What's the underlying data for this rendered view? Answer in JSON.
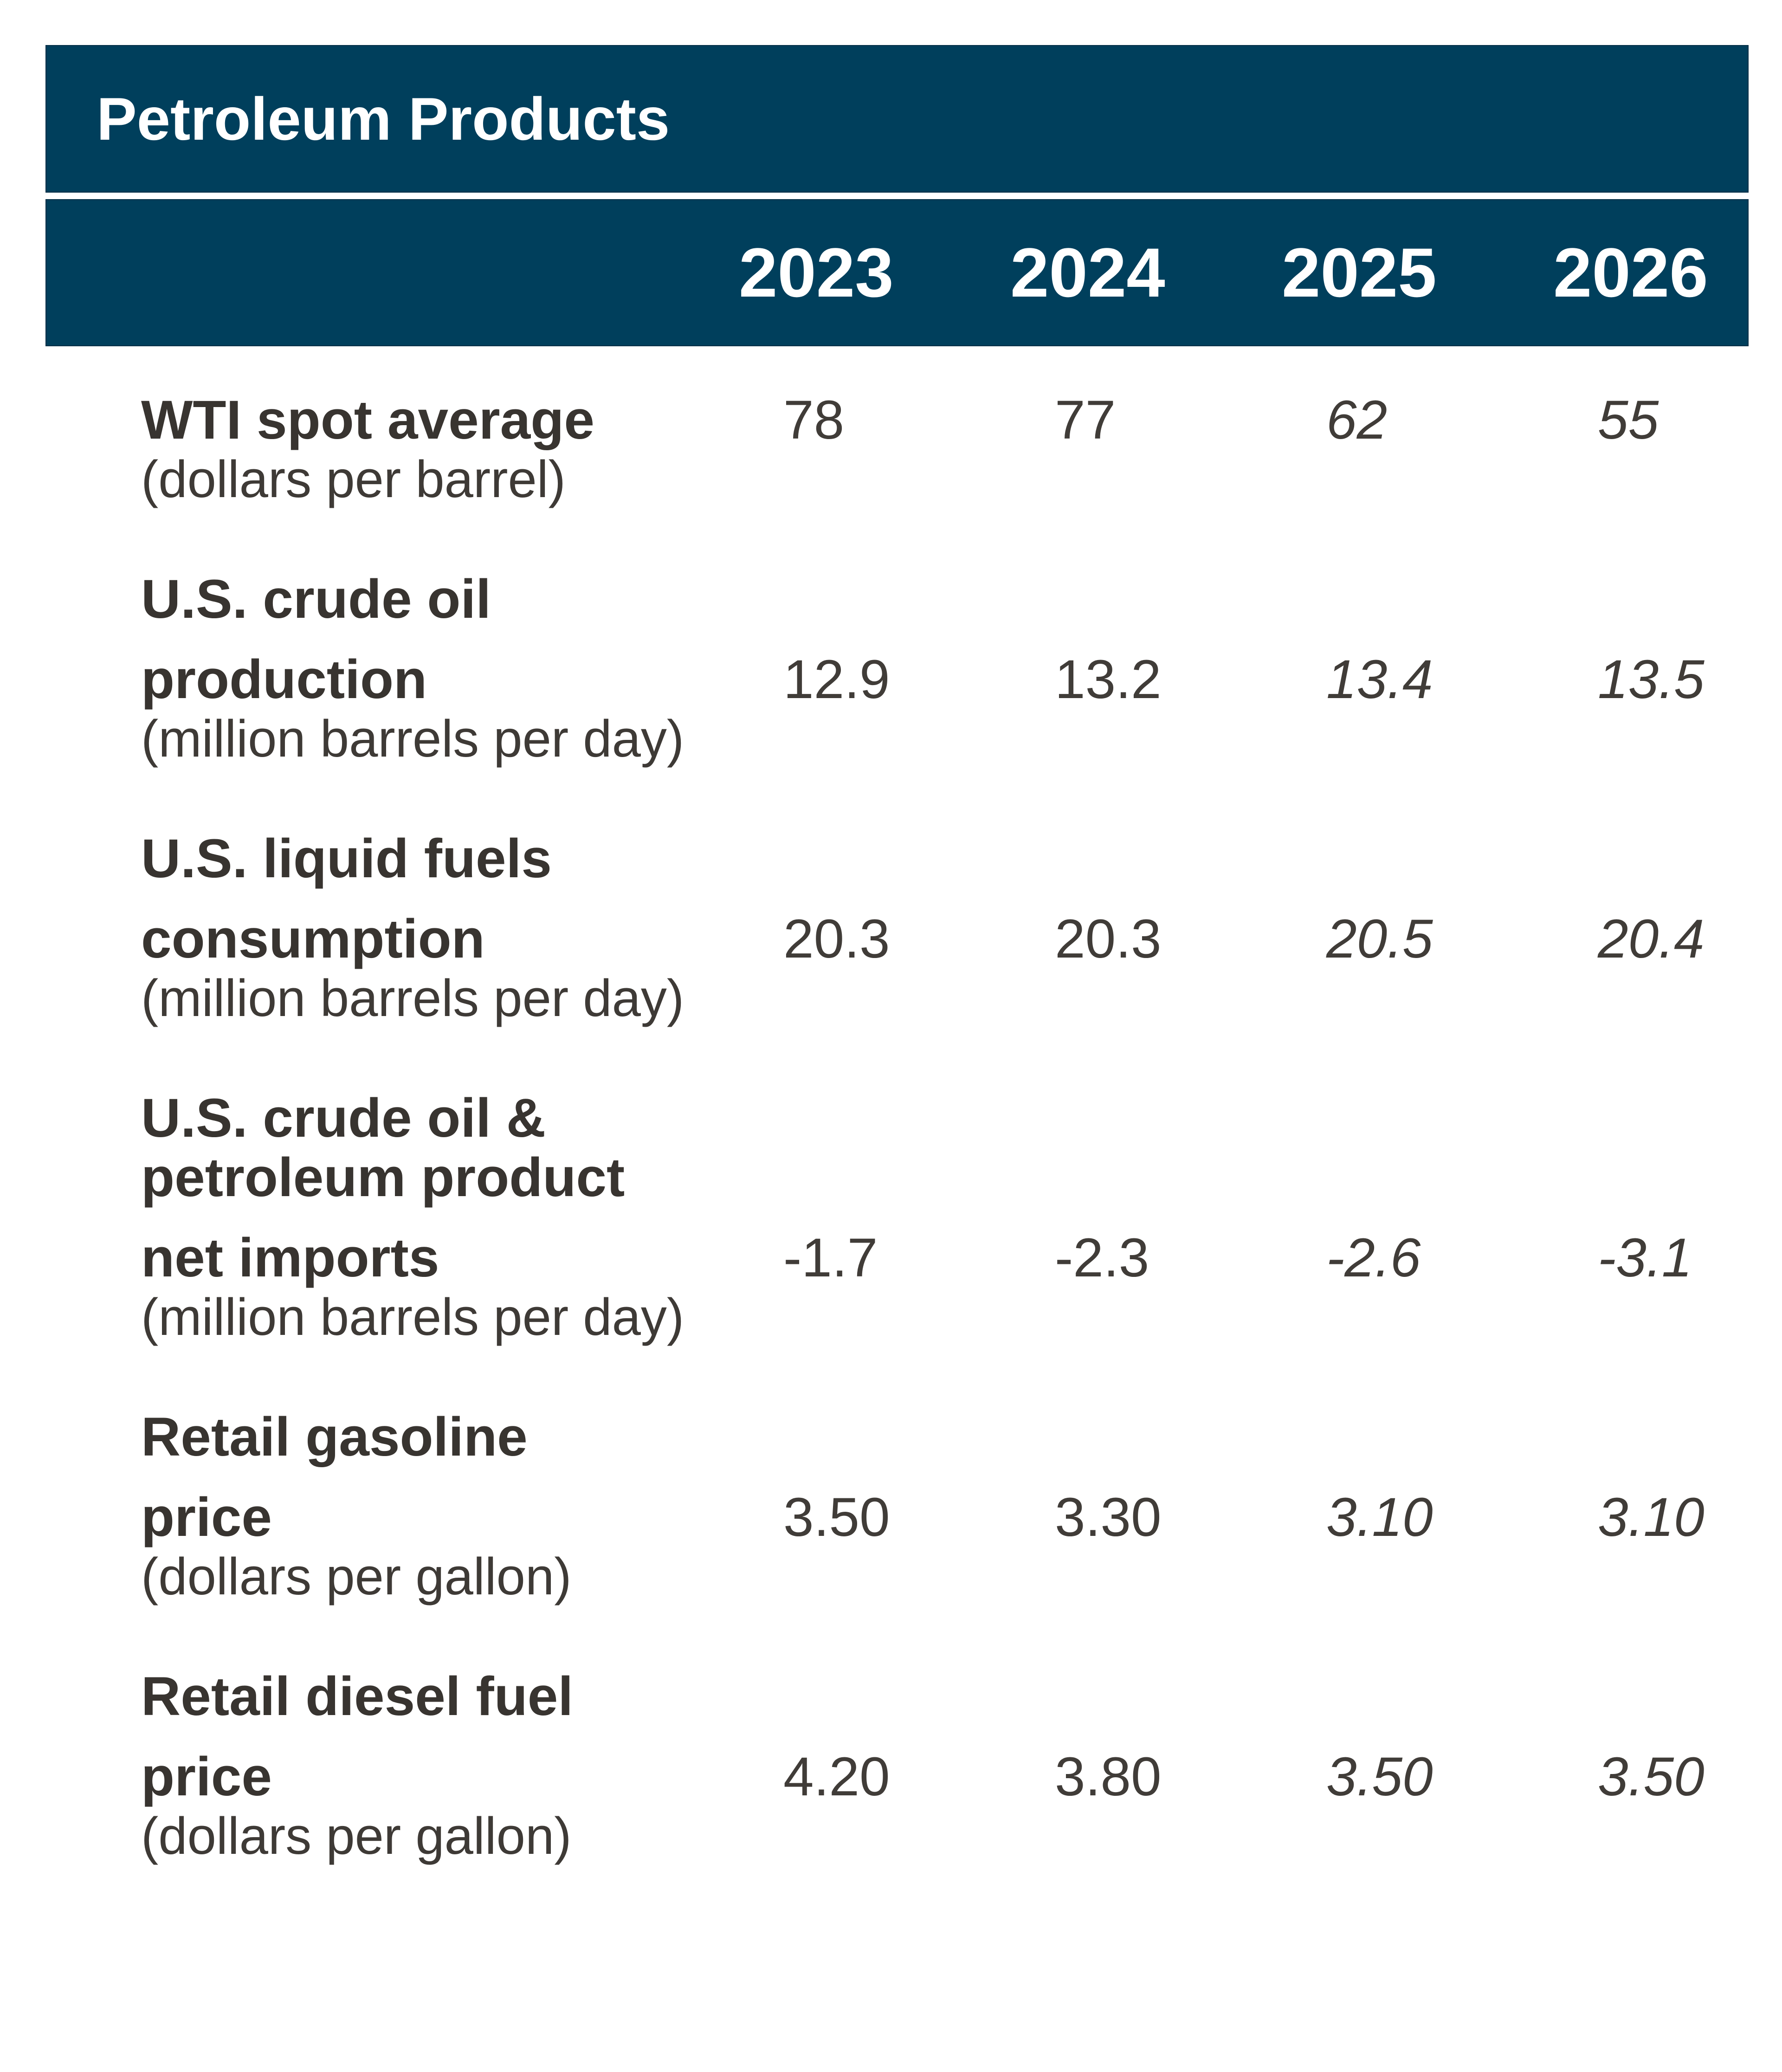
{
  "table": {
    "title": "Petroleum Products",
    "years": [
      "2023",
      "2024",
      "2025",
      "2026"
    ],
    "rows": [
      {
        "name_pre": "",
        "name": "WTI spot average",
        "units": "(dollars per barrel)",
        "values": [
          "78",
          "77",
          "62",
          "55"
        ],
        "forecast": [
          false,
          false,
          true,
          true
        ]
      },
      {
        "name_pre": "U.S. crude oil",
        "name": "production",
        "units": "(million barrels per day)",
        "values": [
          "12.9",
          "13.2",
          "13.4",
          "13.5"
        ],
        "forecast": [
          false,
          false,
          true,
          true
        ]
      },
      {
        "name_pre": "U.S. liquid fuels",
        "name": "consumption",
        "units": "(million barrels per day)",
        "values": [
          "20.3",
          "20.3",
          "20.5",
          "20.4"
        ],
        "forecast": [
          false,
          false,
          true,
          true
        ]
      },
      {
        "name_pre": "U.S. crude oil &\npetroleum product",
        "name": "net imports",
        "units": "(million barrels per day)",
        "values": [
          "-1.7",
          "-2.3",
          "-2.6",
          "-3.1"
        ],
        "forecast": [
          false,
          false,
          true,
          true
        ]
      },
      {
        "name_pre": "Retail gasoline",
        "name": "price",
        "units": "(dollars per gallon)",
        "values": [
          "3.50",
          "3.30",
          "3.10",
          "3.10"
        ],
        "forecast": [
          false,
          false,
          true,
          true
        ]
      },
      {
        "name_pre": "Retail diesel fuel",
        "name": "price",
        "units": "(dollars per gallon)",
        "values": [
          "4.20",
          "3.80",
          "3.50",
          "3.50"
        ],
        "forecast": [
          false,
          false,
          true,
          true
        ]
      }
    ],
    "colors": {
      "header_bg": "#003F5C",
      "header_text": "#FFFFFF",
      "body_text": "#383430"
    }
  },
  "chart_data": {
    "type": "table",
    "title": "Petroleum Products",
    "categories": [
      "2023",
      "2024",
      "2025",
      "2026"
    ],
    "series": [
      {
        "name": "WTI spot average (dollars per barrel)",
        "values": [
          78,
          77,
          62,
          55
        ]
      },
      {
        "name": "U.S. crude oil production (million barrels per day)",
        "values": [
          12.9,
          13.2,
          13.4,
          13.5
        ]
      },
      {
        "name": "U.S. liquid fuels consumption (million barrels per day)",
        "values": [
          20.3,
          20.3,
          20.5,
          20.4
        ]
      },
      {
        "name": "U.S. crude oil & petroleum product net imports (million barrels per day)",
        "values": [
          -1.7,
          -2.3,
          -2.6,
          -3.1
        ]
      },
      {
        "name": "Retail gasoline price (dollars per gallon)",
        "values": [
          3.5,
          3.3,
          3.1,
          3.1
        ]
      },
      {
        "name": "Retail diesel fuel price (dollars per gallon)",
        "values": [
          4.2,
          3.8,
          3.5,
          3.5
        ]
      }
    ],
    "notes": "Values for 2025 and 2026 are shown in italics (forecast years)."
  }
}
